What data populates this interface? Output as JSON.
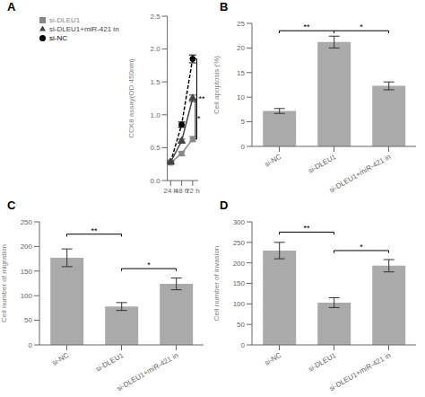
{
  "chart_data": [
    {
      "type": "line",
      "title": "A",
      "ylabel": "CCK8 assay(OD 450nm)",
      "categories": [
        "24 h",
        "48 h",
        "72 h"
      ],
      "series": [
        {
          "name": "si-NC",
          "color": "#000000",
          "marker": "circle",
          "line_style": "dashed",
          "values": [
            0.28,
            0.85,
            1.85
          ],
          "errors": [
            0.02,
            0.04,
            0.06
          ]
        },
        {
          "name": "si-DLEU1",
          "color": "#888888",
          "marker": "square",
          "line_style": "solid",
          "values": [
            0.27,
            0.41,
            0.63
          ],
          "errors": [
            0.02,
            0.03,
            0.04
          ]
        },
        {
          "name": "si-DLEU1+miR-421 in",
          "color": "#444444",
          "marker": "triangle",
          "line_style": "solid",
          "values": [
            0.28,
            0.6,
            1.25
          ],
          "errors": [
            0.02,
            0.03,
            0.05
          ]
        }
      ],
      "ylim": [
        0.0,
        2.5
      ],
      "yticks": [
        {
          "value": 0,
          "label": "0.0"
        },
        0.5,
        {
          "value": 1,
          "label": "1.0"
        },
        1.5,
        {
          "value": 2,
          "label": "2.0"
        },
        2.5
      ],
      "legend": "upper left",
      "grid": false,
      "annotations": [
        {
          "text": "**",
          "series": [
            "si-NC",
            "si-DLEU1"
          ],
          "category": "72 h"
        },
        {
          "text": "*",
          "series": [
            "si-DLEU1+miR-421 in",
            "si-DLEU1"
          ],
          "category": "72 h"
        }
      ]
    },
    {
      "type": "bar",
      "title": "B",
      "ylabel": "Cell apoptosis (%)",
      "categories": [
        "si-NC",
        "si-DLEU1",
        "si-DLEU1+miR-421 in"
      ],
      "values": [
        7.2,
        21.2,
        12.3
      ],
      "errors": [
        0.5,
        1.2,
        0.8
      ],
      "color": "#aaaaaa",
      "ylim": [
        0,
        25
      ],
      "yticks": [
        0,
        5,
        10,
        15,
        20,
        25
      ],
      "grid": false,
      "annotations": [
        {
          "text": "**",
          "x1": "si-NC",
          "x2": "si-DLEU1",
          "y": 23.5
        },
        {
          "text": "*",
          "x1": "si-DLEU1",
          "x2": "si-DLEU1+miR-421 in",
          "y": 23.5
        }
      ]
    },
    {
      "type": "bar",
      "title": "C",
      "ylabel": "Cell number of migration",
      "categories": [
        "si-NC",
        "si-DLEU1",
        "si-DLEU1+miR-421 in"
      ],
      "values": [
        177,
        78,
        124
      ],
      "errors": [
        18,
        8,
        12
      ],
      "color": "#aaaaaa",
      "ylim": [
        0,
        250
      ],
      "yticks": [
        0,
        50,
        100,
        150,
        200,
        250
      ],
      "grid": false,
      "annotations": [
        {
          "text": "**",
          "x1": "si-NC",
          "x2": "si-DLEU1",
          "y": 225
        },
        {
          "text": "*",
          "x1": "si-DLEU1",
          "x2": "si-DLEU1+miR-421 in",
          "y": 155
        }
      ]
    },
    {
      "type": "bar",
      "title": "D",
      "ylabel": "Cell number of invasion",
      "categories": [
        "si-NC",
        "si-DLEU1",
        "si-DLEU1+miR-421 in"
      ],
      "values": [
        230,
        103,
        193
      ],
      "errors": [
        20,
        12,
        15
      ],
      "color": "#aaaaaa",
      "ylim": [
        0,
        300
      ],
      "yticks": [
        0,
        50,
        100,
        150,
        200,
        250,
        300
      ],
      "grid": false,
      "annotations": [
        {
          "text": "**",
          "x1": "si-NC",
          "x2": "si-DLEU1",
          "y": 275
        },
        {
          "text": "*",
          "x1": "si-DLEU1",
          "x2": "si-DLEU1+miR-421 in",
          "y": 230
        }
      ]
    }
  ]
}
